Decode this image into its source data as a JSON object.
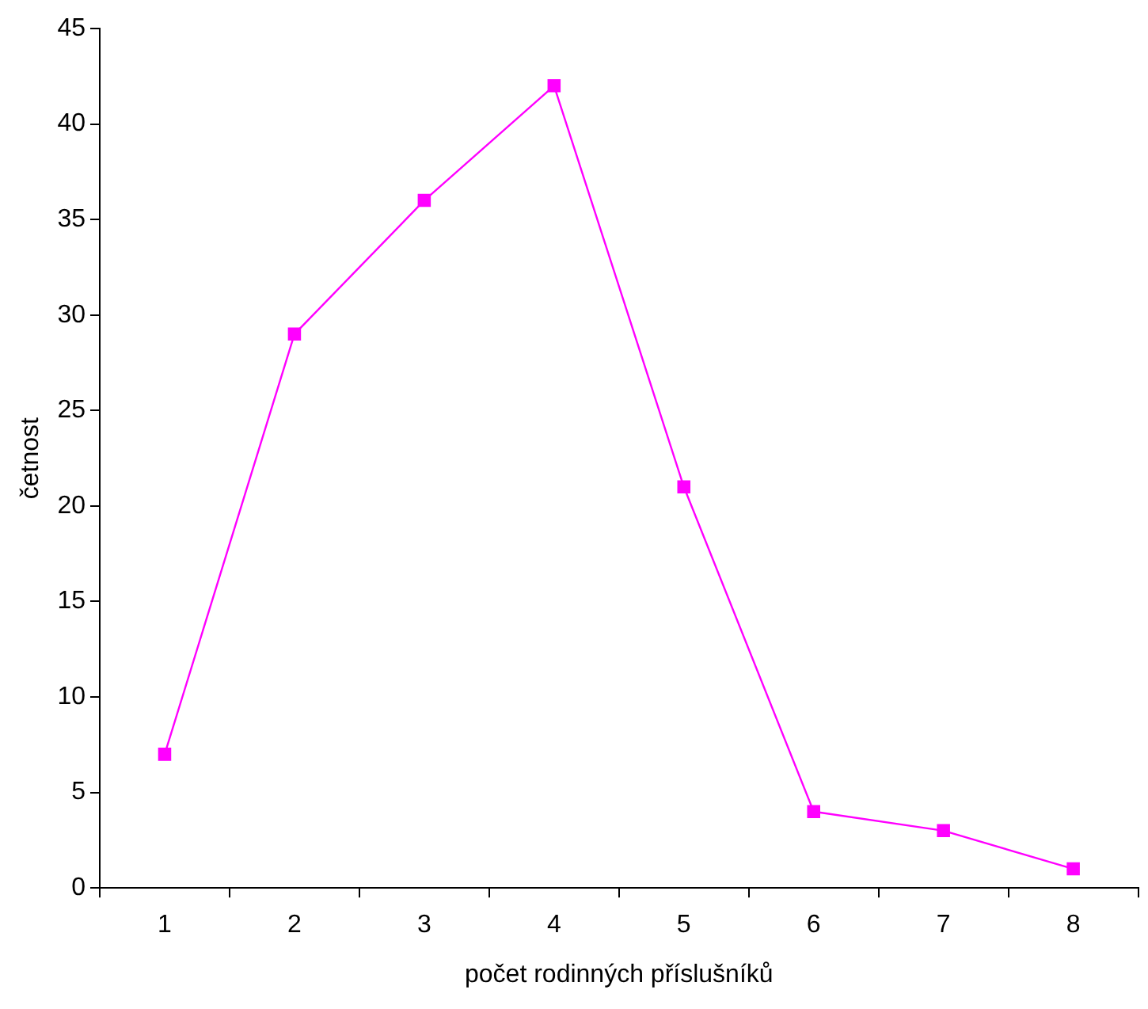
{
  "chart_data": {
    "type": "line",
    "xlabel": "počet rodinných příslušníků",
    "ylabel": "četnost",
    "categories": [
      "1",
      "2",
      "3",
      "4",
      "5",
      "6",
      "7",
      "8"
    ],
    "series": [
      {
        "color": "#ff00ff",
        "values": [
          7,
          29,
          36,
          42,
          21,
          4,
          3,
          1
        ]
      }
    ],
    "ylim": [
      0,
      45
    ],
    "yticks": [
      0,
      5,
      10,
      15,
      20,
      25,
      30,
      35,
      40,
      45
    ],
    "grid": false,
    "legend": false,
    "marker": "square",
    "line_style": "solid"
  }
}
